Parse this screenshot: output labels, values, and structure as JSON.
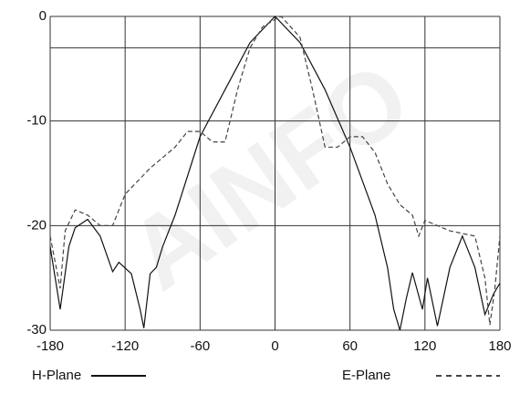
{
  "chart_data": {
    "type": "line",
    "watermark": "AINFO",
    "xlim": [
      -180,
      180
    ],
    "xticks": [
      -180,
      -120,
      -60,
      0,
      60,
      120,
      180
    ],
    "ylim": [
      -30,
      0
    ],
    "yticks": [
      0,
      -10,
      -20,
      -30
    ],
    "reference_line": -3,
    "grid": true,
    "series": [
      {
        "name": "H-Plane",
        "color": "#111111",
        "style": "solid",
        "x": [
          -180,
          -172,
          -165,
          -160,
          -150,
          -140,
          -130,
          -125,
          -115,
          -108,
          -105,
          -100,
          -95,
          -90,
          -80,
          -60,
          -40,
          -20,
          0,
          20,
          40,
          60,
          80,
          90,
          95,
          100,
          105,
          110,
          118,
          122,
          130,
          140,
          150,
          160,
          168,
          175,
          180
        ],
        "values": [
          -22,
          -28,
          -22,
          -20.2,
          -19.4,
          -21,
          -24.4,
          -23.5,
          -24.6,
          -28,
          -29.8,
          -24.6,
          -24,
          -22,
          -19,
          -11.5,
          -7,
          -2.5,
          0,
          -2.5,
          -7,
          -12.5,
          -19,
          -24,
          -28,
          -30,
          -27,
          -24.5,
          -28,
          -25,
          -29.6,
          -24,
          -21,
          -24,
          -28.5,
          -26.5,
          -25.5
        ]
      },
      {
        "name": "E-Plane",
        "color": "#444444",
        "style": "dashed",
        "x": [
          -180,
          -172,
          -168,
          -160,
          -150,
          -140,
          -130,
          -120,
          -100,
          -80,
          -70,
          -60,
          -50,
          -40,
          -30,
          -20,
          -10,
          0,
          5,
          20,
          30,
          40,
          50,
          60,
          70,
          80,
          90,
          100,
          110,
          115,
          120,
          140,
          160,
          168,
          172,
          176,
          180
        ],
        "values": [
          -21,
          -26,
          -20.5,
          -18.5,
          -19,
          -20,
          -20,
          -17,
          -14.5,
          -12.5,
          -11,
          -11,
          -12,
          -12,
          -7,
          -3,
          -1,
          -0.3,
          0,
          -2,
          -7,
          -12.5,
          -12.5,
          -11.5,
          -11.5,
          -13,
          -16,
          -18,
          -19,
          -21,
          -19.5,
          -20.5,
          -21,
          -25,
          -29.5,
          -26,
          -21
        ]
      }
    ]
  }
}
